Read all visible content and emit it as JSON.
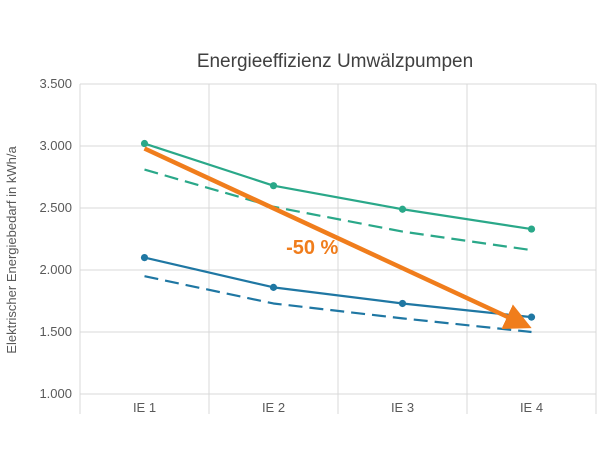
{
  "chart_data": {
    "type": "line",
    "title": "Energieeffizienz Umwälzpumpen",
    "xlabel": "",
    "ylabel": "Elektrischer Energiebedarf in kWh/a",
    "categories": [
      "IE 1",
      "IE 2",
      "IE 3",
      "IE 4"
    ],
    "ylim": [
      1000,
      3500
    ],
    "yticks": [
      1000,
      1500,
      2000,
      2500,
      3000,
      3500
    ],
    "ytick_labels": [
      "1.000",
      "1.500",
      "2.000",
      "2.500",
      "3.000",
      "3.500"
    ],
    "grid": "vertical and horizontal",
    "series": [
      {
        "name": "green-solid",
        "style": "solid",
        "markers": true,
        "color": "#2aa889",
        "values": [
          3020,
          2680,
          2490,
          2330
        ]
      },
      {
        "name": "green-dashed",
        "style": "dashed",
        "markers": false,
        "color": "#2aa889",
        "values": [
          2810,
          2510,
          2310,
          2160
        ]
      },
      {
        "name": "blue-solid",
        "style": "solid",
        "markers": true,
        "color": "#1f77a3",
        "values": [
          2100,
          1860,
          1730,
          1620
        ]
      },
      {
        "name": "blue-dashed",
        "style": "dashed",
        "markers": false,
        "color": "#1f77a3",
        "values": [
          1950,
          1730,
          1610,
          1500
        ]
      }
    ],
    "annotation": {
      "type": "arrow",
      "color": "#f07d1c",
      "from": {
        "category": "IE 1",
        "value": 2980
      },
      "to": {
        "category": "IE 4",
        "value": 1530
      },
      "label": "-50 %",
      "label_at": {
        "category_index": 1.3,
        "value": 2130
      }
    }
  }
}
